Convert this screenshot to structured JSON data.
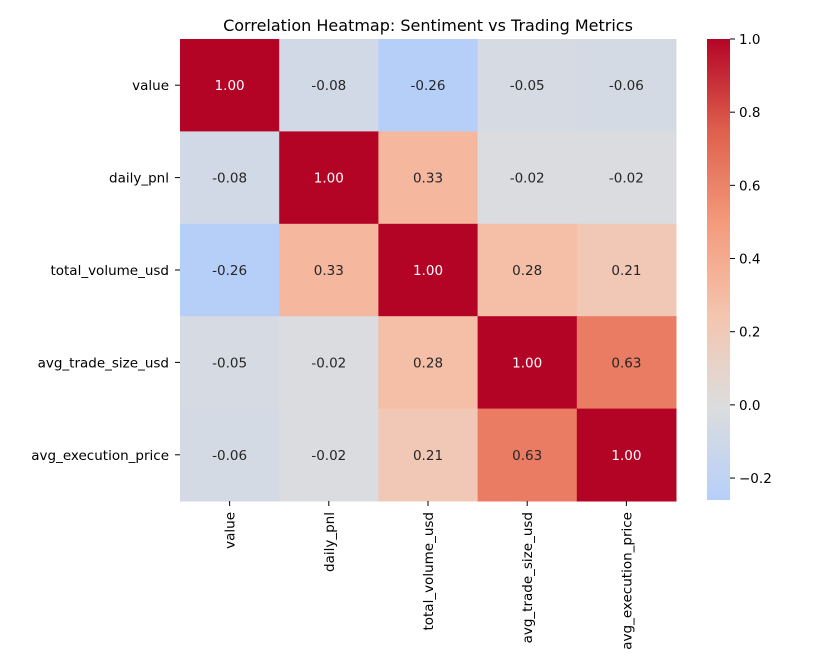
{
  "chart_data": {
    "type": "heatmap",
    "title": "Correlation Heatmap: Sentiment vs Trading Metrics",
    "xlabel": "",
    "ylabel": "",
    "rows": [
      "value",
      "daily_pnl",
      "total_volume_usd",
      "avg_trade_size_usd",
      "avg_execution_price"
    ],
    "columns": [
      "value",
      "daily_pnl",
      "total_volume_usd",
      "avg_trade_size_usd",
      "avg_execution_price"
    ],
    "values": [
      [
        1.0,
        -0.08,
        -0.26,
        -0.05,
        -0.06
      ],
      [
        -0.08,
        1.0,
        0.33,
        -0.02,
        -0.02
      ],
      [
        -0.26,
        0.33,
        1.0,
        0.28,
        0.21
      ],
      [
        -0.05,
        -0.02,
        0.28,
        1.0,
        0.63
      ],
      [
        -0.06,
        -0.02,
        0.21,
        0.63,
        1.0
      ]
    ],
    "annotations": [
      [
        "1.00",
        "-0.08",
        "-0.26",
        "-0.05",
        "-0.06"
      ],
      [
        "-0.08",
        "1.00",
        "0.33",
        "-0.02",
        "-0.02"
      ],
      [
        "-0.26",
        "0.33",
        "1.00",
        "0.28",
        "0.21"
      ],
      [
        "-0.05",
        "-0.02",
        "0.28",
        "1.00",
        "0.63"
      ],
      [
        "-0.06",
        "-0.02",
        "0.21",
        "0.63",
        "1.00"
      ]
    ],
    "colormap": "coolwarm",
    "color_center": 0,
    "vmin": -0.26,
    "vmax": 1.0,
    "colorbar": {
      "ticks": [
        1.0,
        0.8,
        0.6,
        0.4,
        0.2,
        0.0,
        -0.2
      ],
      "tick_labels": [
        "1.0",
        "0.8",
        "0.6",
        "0.4",
        "0.2",
        "0.0",
        "−0.2"
      ],
      "placement": "right"
    },
    "grid": false
  }
}
